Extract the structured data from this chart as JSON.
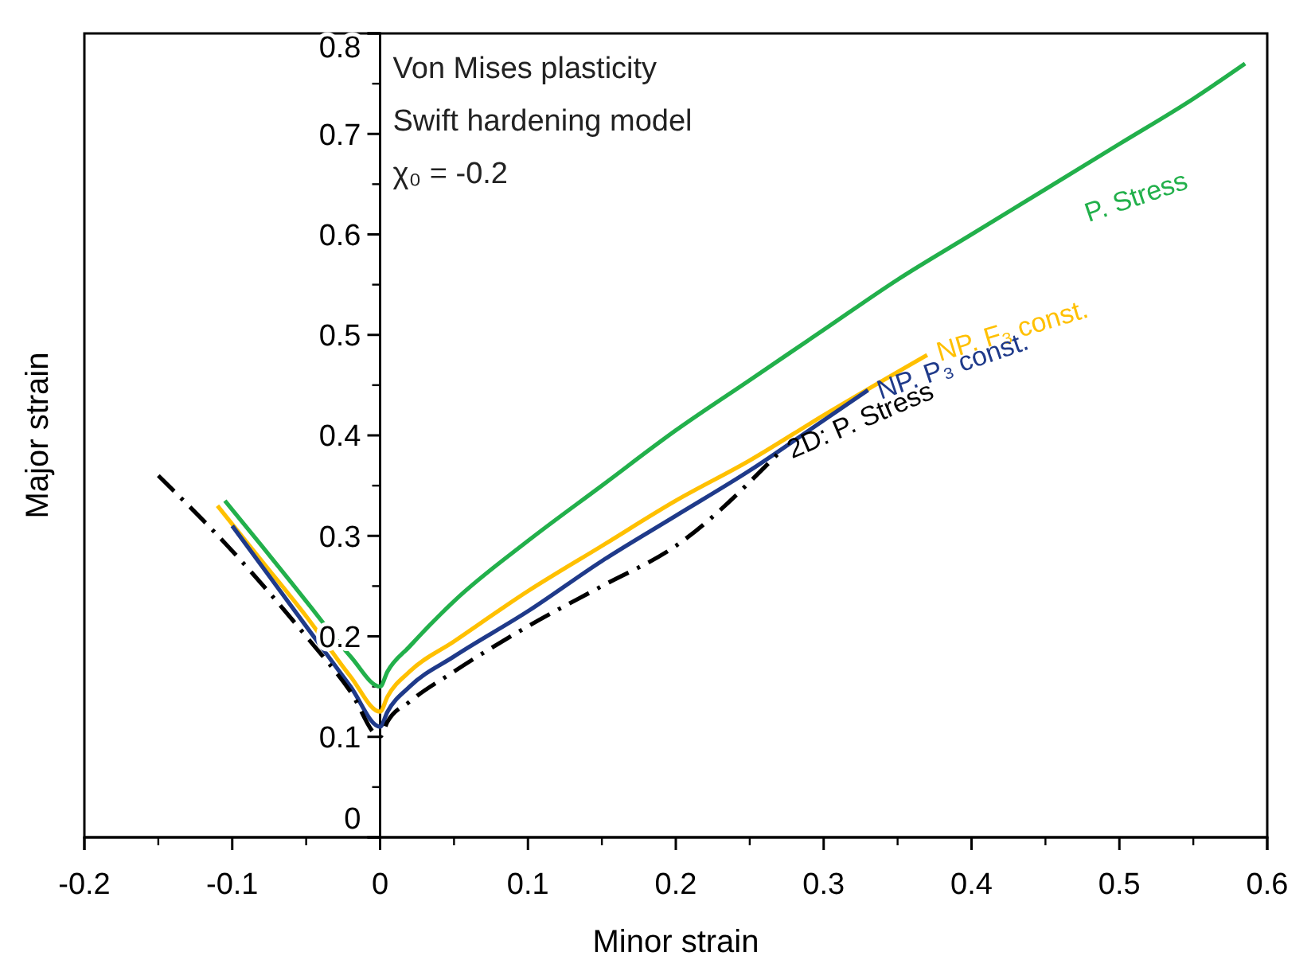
{
  "chart_data": {
    "type": "line",
    "xlabel": "Minor strain",
    "ylabel": "Major strain",
    "xlim": [
      -0.2,
      0.6
    ],
    "ylim": [
      0,
      0.8
    ],
    "xticks": [
      -0.2,
      -0.1,
      0,
      0.1,
      0.2,
      0.3,
      0.4,
      0.5,
      0.6
    ],
    "yticks": [
      0,
      0.1,
      0.2,
      0.3,
      0.4,
      0.5,
      0.6,
      0.7,
      0.8
    ],
    "marker": "none",
    "annotations": [
      "Von Mises plasticity",
      "Swift hardening model",
      "χ₀ = -0.2"
    ],
    "series": [
      {
        "name": "P. Stress",
        "color": "#22b04b",
        "line_style": "solid",
        "x": [
          -0.105,
          -0.08,
          -0.05,
          -0.02,
          0,
          0.005,
          0.02,
          0.05,
          0.1,
          0.15,
          0.2,
          0.25,
          0.3,
          0.35,
          0.4,
          0.45,
          0.5,
          0.55,
          0.585
        ],
        "values": [
          0.335,
          0.29,
          0.235,
          0.18,
          0.15,
          0.165,
          0.19,
          0.235,
          0.295,
          0.35,
          0.405,
          0.455,
          0.505,
          0.555,
          0.6,
          0.645,
          0.69,
          0.735,
          0.77
        ]
      },
      {
        "name": "NP. F₃ const.",
        "color": "#ffc000",
        "line_style": "solid",
        "x": [
          -0.11,
          -0.08,
          -0.05,
          -0.02,
          0,
          0.005,
          0.02,
          0.05,
          0.1,
          0.15,
          0.2,
          0.25,
          0.3,
          0.37
        ],
        "values": [
          0.33,
          0.275,
          0.22,
          0.16,
          0.125,
          0.14,
          0.165,
          0.195,
          0.245,
          0.29,
          0.335,
          0.375,
          0.42,
          0.48
        ]
      },
      {
        "name": "NP. P₃ const.",
        "color": "#1f3a8a",
        "line_style": "solid",
        "x": [
          -0.1,
          -0.075,
          -0.05,
          -0.02,
          0,
          0.005,
          0.02,
          0.05,
          0.1,
          0.15,
          0.2,
          0.25,
          0.3,
          0.33
        ],
        "values": [
          0.31,
          0.26,
          0.21,
          0.15,
          0.11,
          0.125,
          0.15,
          0.18,
          0.225,
          0.275,
          0.32,
          0.365,
          0.415,
          0.445
        ]
      },
      {
        "name": "2D: P. Stress",
        "color": "#000000",
        "line_style": "dashdot",
        "x": [
          -0.15,
          -0.1,
          -0.05,
          -0.02,
          0,
          0.005,
          0.02,
          0.05,
          0.1,
          0.15,
          0.2,
          0.27
        ],
        "values": [
          0.36,
          0.285,
          0.2,
          0.145,
          0.1,
          0.115,
          0.135,
          0.165,
          0.21,
          0.25,
          0.29,
          0.383
        ]
      }
    ]
  }
}
